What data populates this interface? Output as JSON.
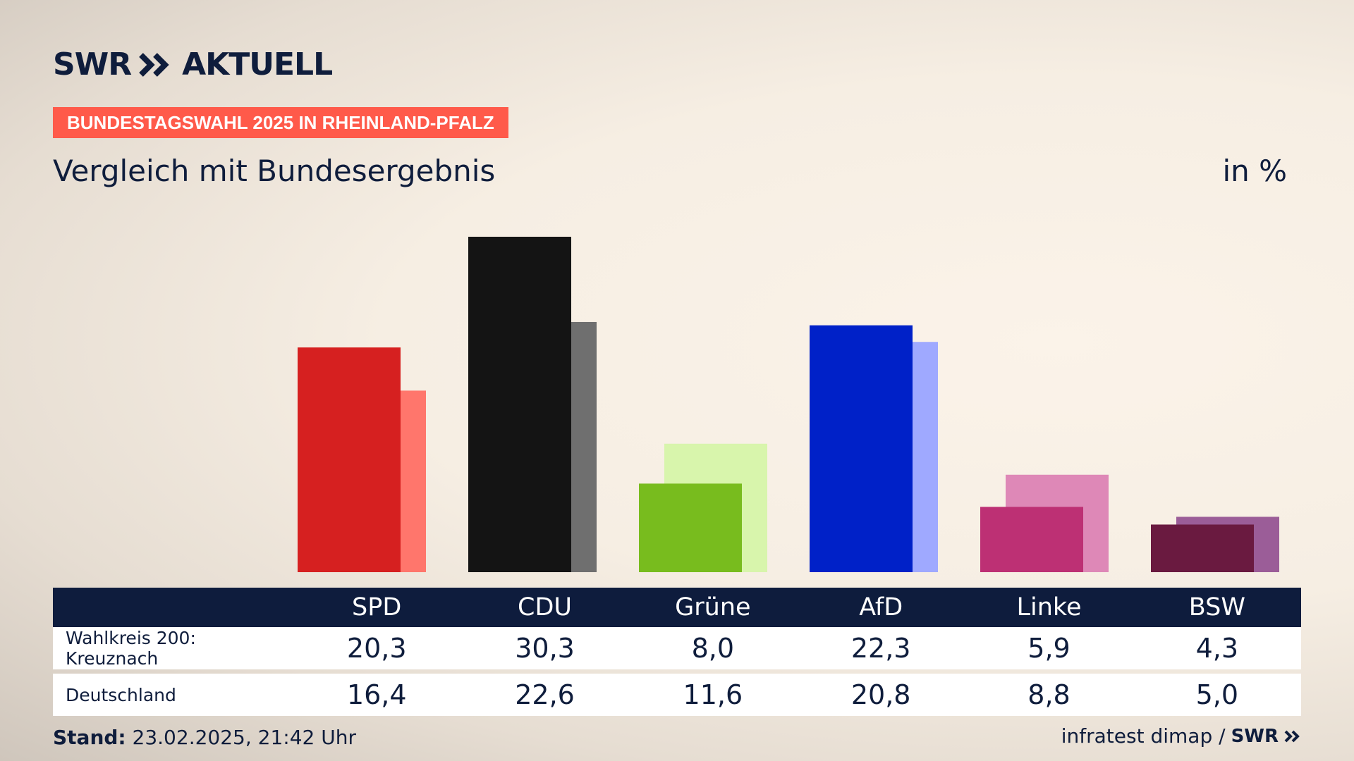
{
  "brand": {
    "name": "SWR",
    "product": "AKTUELL"
  },
  "tag": "BUNDESTAGSWAHL 2025 IN RHEINLAND-PFALZ",
  "subtitle": "Vergleich mit Bundesergebnis",
  "unit": "in %",
  "table": {
    "rows": [
      {
        "label": "Wahlkreis 200: Kreuznach",
        "values": [
          "20,3",
          "30,3",
          "8,0",
          "22,3",
          "5,9",
          "4,3"
        ]
      },
      {
        "label": "Deutschland",
        "values": [
          "16,4",
          "22,6",
          "11,6",
          "20,8",
          "8,8",
          "5,0"
        ]
      }
    ]
  },
  "footer": {
    "stand_label": "Stand:",
    "stand_value": "23.02.2025, 21:42 Uhr",
    "source": "infratest dimap /",
    "logo": "SWR"
  },
  "chart_data": {
    "type": "bar",
    "categories": [
      "SPD",
      "CDU",
      "Grüne",
      "AfD",
      "Linke",
      "BSW"
    ],
    "series": [
      {
        "name": "Wahlkreis 200: Kreuznach",
        "values": [
          20.3,
          30.3,
          8.0,
          22.3,
          5.9,
          4.3
        ]
      },
      {
        "name": "Deutschland",
        "values": [
          16.4,
          22.6,
          11.6,
          20.8,
          8.8,
          5.0
        ]
      }
    ],
    "colors": {
      "primary": [
        "#d62020",
        "#141414",
        "#78bc1e",
        "#0021c8",
        "#bd3074",
        "#6a1a40"
      ],
      "secondary": [
        "#ff766c",
        "#6f6f6f",
        "#d8f5ac",
        "#9fa9ff",
        "#de88b7",
        "#9b5d98"
      ]
    },
    "ylim": [
      0,
      30.3
    ],
    "grid": false
  }
}
